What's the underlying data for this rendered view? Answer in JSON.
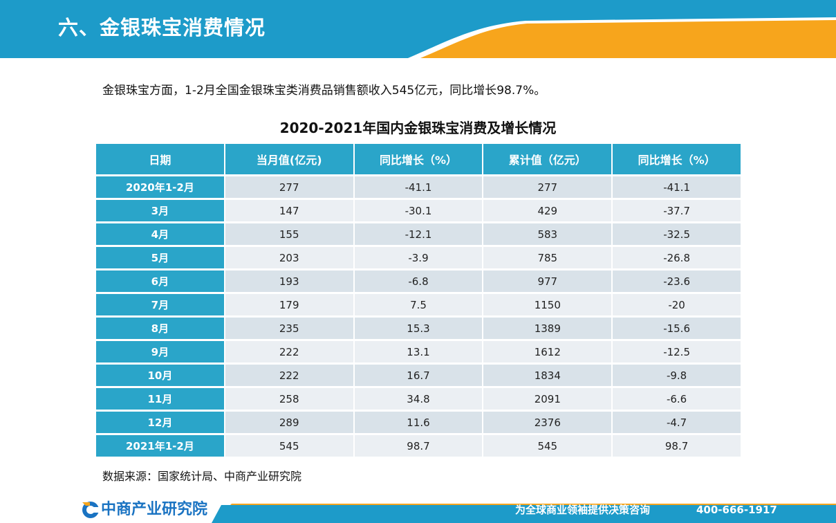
{
  "header": {
    "title": "六、金银珠宝消费情况"
  },
  "intro_text": "金银珠宝方面，1-2月全国金银珠宝类消费品销售额收入545亿元，同比增长98.7%。",
  "table": {
    "title": "2020-2021年国内金银珠宝消费及增长情况",
    "headers": [
      "日期",
      "当月值(亿元)",
      "同比增长（%）",
      "累计值（亿元）",
      "同比增长（%）"
    ],
    "rows": [
      [
        "2020年1-2月",
        "277",
        "-41.1",
        "277",
        "-41.1"
      ],
      [
        "3月",
        "147",
        "-30.1",
        "429",
        "-37.7"
      ],
      [
        "4月",
        "155",
        "-12.1",
        "583",
        "-32.5"
      ],
      [
        "5月",
        "203",
        "-3.9",
        "785",
        "-26.8"
      ],
      [
        "6月",
        "193",
        "-6.8",
        "977",
        "-23.6"
      ],
      [
        "7月",
        "179",
        "7.5",
        "1150",
        "-20"
      ],
      [
        "8月",
        "235",
        "15.3",
        "1389",
        "-15.6"
      ],
      [
        "9月",
        "222",
        "13.1",
        "1612",
        "-12.5"
      ],
      [
        "10月",
        "222",
        "16.7",
        "1834",
        "-9.8"
      ],
      [
        "11月",
        "258",
        "34.8",
        "2091",
        "-6.6"
      ],
      [
        "12月",
        "289",
        "11.6",
        "2376",
        "-4.7"
      ],
      [
        "2021年1-2月",
        "545",
        "98.7",
        "545",
        "98.7"
      ]
    ]
  },
  "source": "数据来源：国家统计局、中商产业研究院",
  "footer": {
    "logo_text": "中商产业研究院",
    "slogan": "为全球商业领袖提供决策咨询",
    "phone": "400-666-1917"
  },
  "colors": {
    "header_blue": "#1d9bc9",
    "accent_orange": "#f7a51c",
    "table_blue": "#2aa5c9",
    "row_light": "#ebeff3",
    "row_dark": "#d9e2e9",
    "logo_blue": "#1a73c2"
  }
}
